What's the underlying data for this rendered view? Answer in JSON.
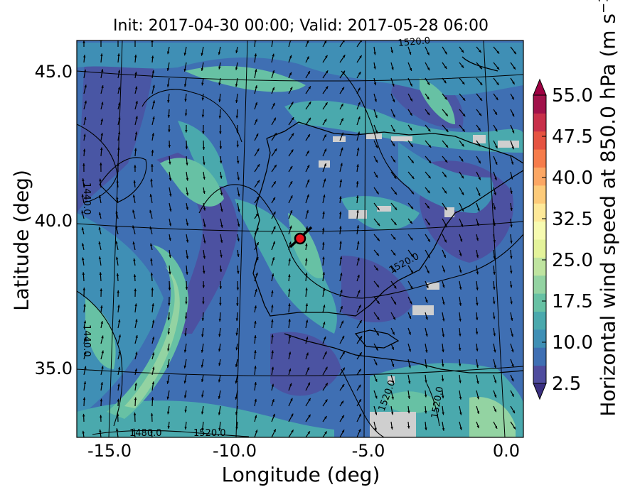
{
  "title": "Init: 2017-04-30 00:00; Valid: 2017-05-28 06:00",
  "axes": {
    "xlabel": "Longitude (deg)",
    "ylabel": "Latitude (deg)",
    "x_ticks": [
      "-15.0",
      "-10.0",
      "-5.0",
      "0.0"
    ],
    "y_ticks": [
      "45.0",
      "40.0",
      "35.0"
    ]
  },
  "colorbar": {
    "label_main": "Horizontal wind speed at 850.0 hPa (m s",
    "label_exp": "−1",
    "label_close": ")",
    "tick_labels": [
      "2.5",
      "10.0",
      "17.5",
      "25.0",
      "32.5",
      "40.0",
      "47.5",
      "55.0"
    ],
    "colors": [
      "#4f4c9e",
      "#3f6fb3",
      "#3f8fb5",
      "#4aa9ad",
      "#67c1a4",
      "#93d3a2",
      "#bfe4a0",
      "#e4f39b",
      "#f7fbb1",
      "#fee999",
      "#fdcb7a",
      "#fca764",
      "#f67c4b",
      "#e55341",
      "#c8304a",
      "#a1124a"
    ],
    "under_color": "#3a2f80",
    "over_color": "#9e0142"
  },
  "contour_labels": [
    "1520.0",
    "1440.0",
    "1440.0",
    "1520.0",
    "1520.0",
    "1520.0",
    "1480.0",
    "1520.0"
  ],
  "marker": {
    "color": "#e8141b"
  },
  "colors": {
    "missing_data": "#cfcfcf",
    "coastline": "#000000",
    "graticule": "#000000"
  }
}
